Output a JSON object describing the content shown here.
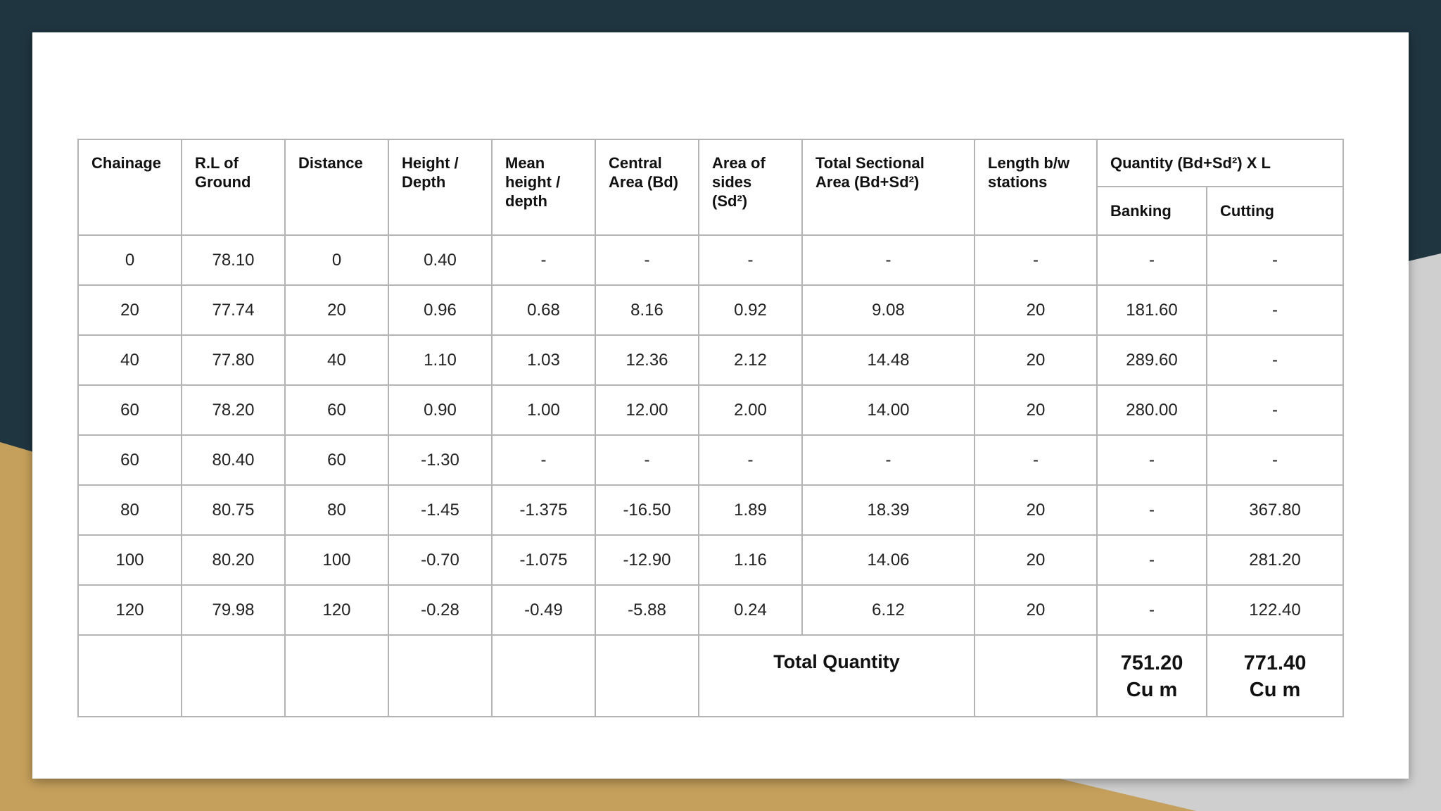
{
  "theme": {
    "background": "#1f3540",
    "accent_gold": "#c5a05c",
    "accent_grey": "#cfcfcf",
    "slide": "#ffffff",
    "grid": "#b4b4b4"
  },
  "table": {
    "headers": {
      "chainage": "Chainage",
      "rl_ground": "R.L of Ground",
      "distance": "Distance",
      "height_depth": "Height / Depth",
      "mean_height": "Mean height / depth",
      "central_area": "Central Area (Bd)",
      "area_sides": "Area of sides (Sd²)",
      "total_sectional": "Total Sectional Area (Bd+Sd²)",
      "length_stations": "Length b/w stations",
      "quantity": "Quantity (Bd+Sd²) X L",
      "banking": "Banking",
      "cutting": "Cutting"
    },
    "rows": [
      [
        "0",
        "78.10",
        "0",
        "0.40",
        "-",
        "-",
        "-",
        "-",
        "-",
        "-",
        "-"
      ],
      [
        "20",
        "77.74",
        "20",
        "0.96",
        "0.68",
        "8.16",
        "0.92",
        "9.08",
        "20",
        "181.60",
        "-"
      ],
      [
        "40",
        "77.80",
        "40",
        "1.10",
        "1.03",
        "12.36",
        "2.12",
        "14.48",
        "20",
        "289.60",
        "-"
      ],
      [
        "60",
        "78.20",
        "60",
        "0.90",
        "1.00",
        "12.00",
        "2.00",
        "14.00",
        "20",
        "280.00",
        "-"
      ],
      [
        "60",
        "80.40",
        "60",
        "-1.30",
        "-",
        "-",
        "-",
        "-",
        "-",
        "-",
        "-"
      ],
      [
        "80",
        "80.75",
        "80",
        "-1.45",
        "-1.375",
        "-16.50",
        "1.89",
        "18.39",
        "20",
        "-",
        "367.80"
      ],
      [
        "100",
        "80.20",
        "100",
        "-0.70",
        "-1.075",
        "-12.90",
        "1.16",
        "14.06",
        "20",
        "-",
        "281.20"
      ],
      [
        "120",
        "79.98",
        "120",
        "-0.28",
        "-0.49",
        "-5.88",
        "0.24",
        "6.12",
        "20",
        "-",
        "122.40"
      ]
    ],
    "total": {
      "label": "Total Quantity",
      "banking_value": "751.20",
      "banking_unit": "Cu m",
      "cutting_value": "771.40",
      "cutting_unit": "Cu m"
    }
  }
}
